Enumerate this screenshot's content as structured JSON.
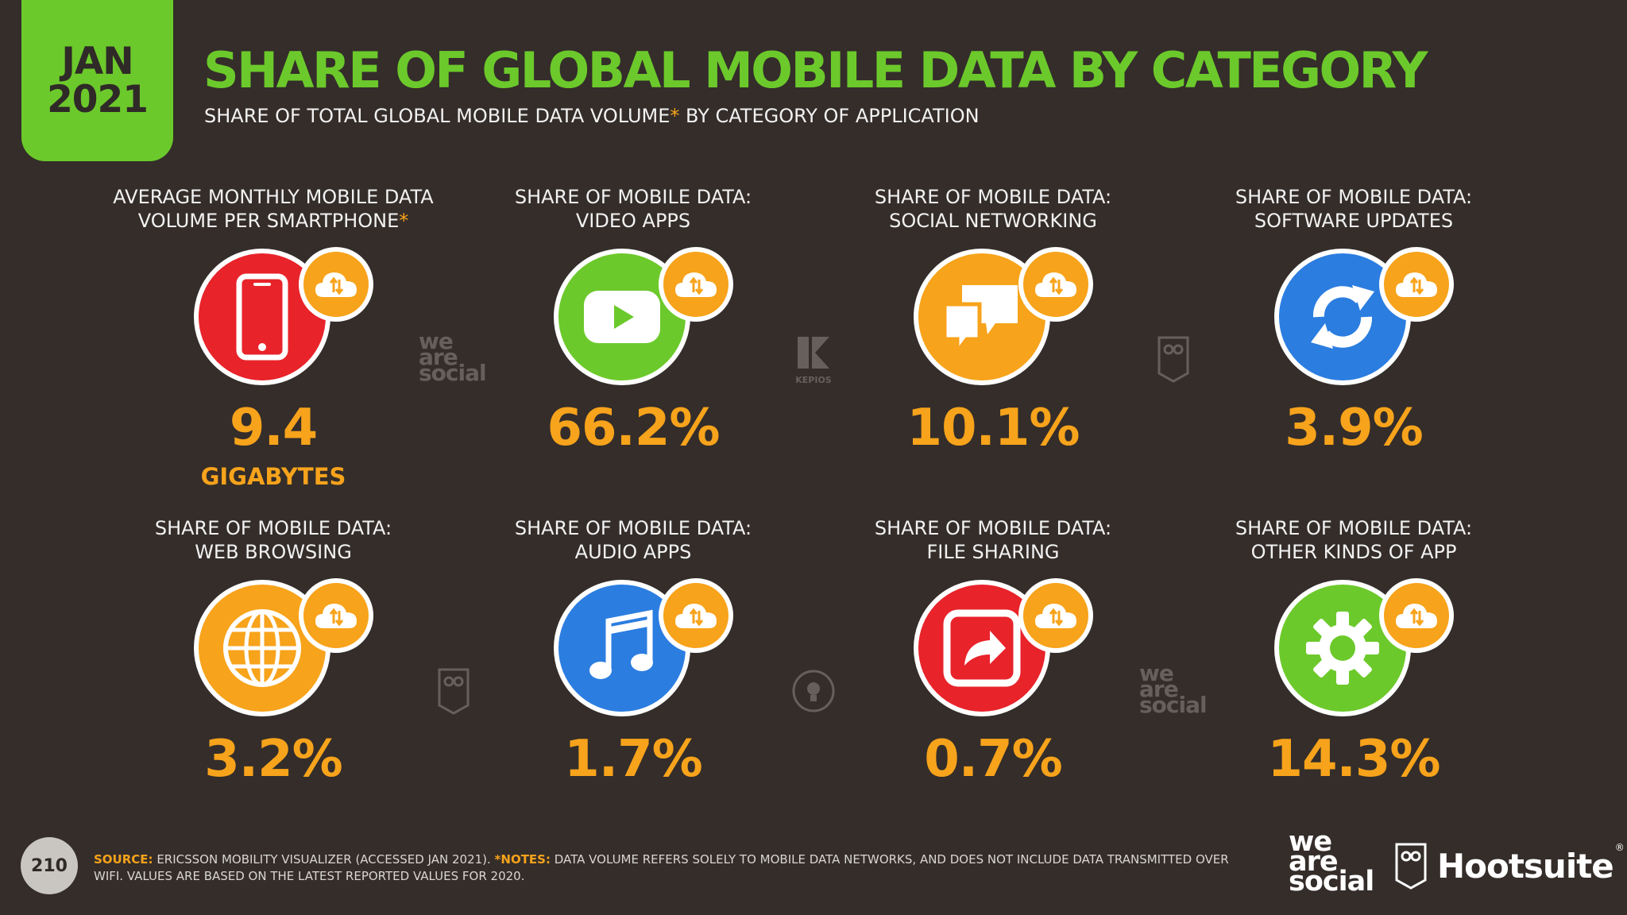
{
  "header": {
    "date_month": "JAN",
    "date_year": "2021",
    "title": "SHARE OF GLOBAL MOBILE DATA BY CATEGORY",
    "subtitle_main": "SHARE OF TOTAL GLOBAL MOBILE DATA VOLUME",
    "subtitle_asterisk": "*",
    "subtitle_rest": " BY CATEGORY OF APPLICATION"
  },
  "cards": [
    {
      "label_line1": "AVERAGE MONTHLY MOBILE DATA",
      "label_line2": "VOLUME PER SMARTPHONE",
      "asterisk": "*",
      "value": "9.4",
      "unit": "GIGABYTES",
      "icon": "smartphone-icon",
      "color": "#e8232a"
    },
    {
      "label_line1": "SHARE OF MOBILE DATA:",
      "label_line2": "VIDEO APPS",
      "value": "66.2%",
      "icon": "video-play-icon",
      "color": "#6cc92b"
    },
    {
      "label_line1": "SHARE OF MOBILE DATA:",
      "label_line2": "SOCIAL NETWORKING",
      "value": "10.1%",
      "icon": "chat-bubbles-icon",
      "color": "#f7a31b"
    },
    {
      "label_line1": "SHARE OF MOBILE DATA:",
      "label_line2": "SOFTWARE UPDATES",
      "value": "3.9%",
      "icon": "refresh-icon",
      "color": "#2b7de0"
    },
    {
      "label_line1": "SHARE OF MOBILE DATA:",
      "label_line2": "WEB BROWSING",
      "value": "3.2%",
      "icon": "globe-icon",
      "color": "#f7a31b"
    },
    {
      "label_line1": "SHARE OF MOBILE DATA:",
      "label_line2": "AUDIO APPS",
      "value": "1.7%",
      "icon": "music-note-icon",
      "color": "#2b7de0"
    },
    {
      "label_line1": "SHARE OF MOBILE DATA:",
      "label_line2": "FILE SHARING",
      "value": "0.7%",
      "icon": "share-arrow-icon",
      "color": "#e8232a"
    },
    {
      "label_line1": "SHARE OF MOBILE DATA:",
      "label_line2": "OTHER KINDS OF APP",
      "value": "14.3%",
      "icon": "gear-icon",
      "color": "#6cc92b"
    }
  ],
  "watermarks": {
    "was_line1": "we",
    "was_line2": "are",
    "was_line3": "social",
    "kepios": "KEPIOS"
  },
  "footer": {
    "page_number": "210",
    "source_label": "SOURCE:",
    "source_text": " ERICSSON MOBILITY VISUALIZER (ACCESSED JAN 2021). ",
    "notes_label": "*NOTES:",
    "notes_text": " DATA VOLUME REFERS SOLELY TO MOBILE DATA NETWORKS, AND DOES NOT INCLUDE DATA TRANSMITTED OVER WIFI. VALUES ARE BASED ON THE LATEST REPORTED VALUES FOR 2020.",
    "logo_was_line1": "we",
    "logo_was_line2": "are",
    "logo_was_line3": "social",
    "logo_hootsuite": "Hootsuite",
    "logo_hootsuite_mark": "®"
  },
  "colors": {
    "background": "#342d2a",
    "accent_green": "#6cc92b",
    "accent_orange": "#f7a31b",
    "red": "#e8232a",
    "blue": "#2b7de0"
  }
}
